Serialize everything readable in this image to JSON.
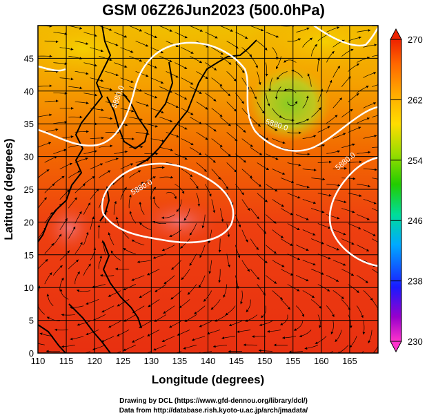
{
  "title": "GSM 06Z26Jun2023 (500.0hPa)",
  "x_axis": {
    "label": "Longitude (degrees)",
    "ticks": [
      "110",
      "115",
      "120",
      "125",
      "130",
      "135",
      "140",
      "145",
      "150",
      "155",
      "160",
      "165"
    ],
    "range": [
      110,
      170
    ]
  },
  "y_axis": {
    "label": "Latitude  (degrees)",
    "ticks": [
      "0",
      "5",
      "10",
      "15",
      "20",
      "25",
      "30",
      "35",
      "40",
      "45"
    ],
    "range": [
      0,
      50
    ]
  },
  "colorbar": {
    "ticks": [
      "230",
      "238",
      "246",
      "254",
      "262",
      "270"
    ],
    "range": [
      230,
      270
    ],
    "colors": [
      "#ff33cc",
      "#8800cc",
      "#1a1aff",
      "#00aaff",
      "#00ddaa",
      "#33cc00",
      "#aadd00",
      "#ffdd00",
      "#ffaa00",
      "#ff6600",
      "#ee2200"
    ]
  },
  "contour_labels": [
    {
      "text": "5880.0",
      "lon": 124.5,
      "lat": 39,
      "rot": -70
    },
    {
      "text": "5880.0",
      "lon": 152,
      "lat": 34.5,
      "rot": 18
    },
    {
      "text": "5880.0",
      "lon": 128.5,
      "lat": 25,
      "rot": -30
    },
    {
      "text": "5880.0",
      "lon": 164.5,
      "lat": 29,
      "rot": -40
    }
  ],
  "footer": {
    "line1": "Drawing by DCL (https://www.gfd-dennou.org/library/dcl/)",
    "line2": "Data from http://database.rish.kyoto-u.ac.jp/arch/jmadata/"
  }
}
